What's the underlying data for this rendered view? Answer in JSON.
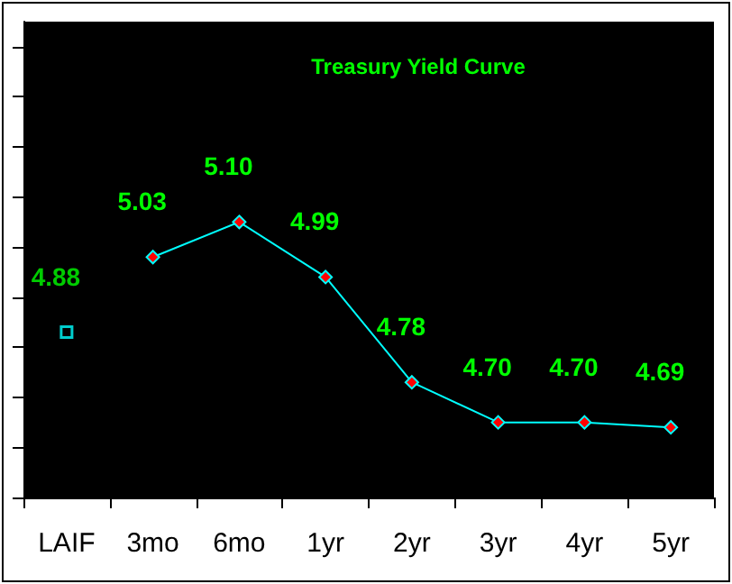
{
  "chart_data": {
    "type": "line",
    "title": "Treasury Yield Curve",
    "categories": [
      "LAIF",
      "3mo",
      "6mo",
      "1yr",
      "2yr",
      "3yr",
      "4yr",
      "5yr"
    ],
    "series": [
      {
        "type": "scatter",
        "color": "#00ffff",
        "marker": "square",
        "values": [
          4.88,
          null,
          null,
          null,
          null,
          null,
          null,
          null
        ],
        "value_labels": [
          "4.88",
          null,
          null,
          null,
          null,
          null,
          null,
          null
        ]
      },
      {
        "color": "#00ffff",
        "colors": [
          "#ff0000",
          "#ff0000",
          "#ff0000",
          "#ff0000",
          "#ff0000",
          "#ff0000",
          "#ff0000",
          "#ff0000"
        ],
        "marker": "diamond",
        "values": [
          null,
          5.03,
          5.1,
          4.99,
          4.78,
          4.7,
          4.7,
          4.69
        ],
        "value_labels": [
          null,
          "5.03",
          "5.10",
          "4.99",
          "4.78",
          "4.70",
          "4.70",
          "4.69"
        ]
      }
    ],
    "ylim": [
      4.55,
      5.5
    ],
    "yticks": [
      {
        "value": 4.55,
        "label": null
      },
      {
        "value": 4.65,
        "label": null
      },
      {
        "value": 4.75,
        "label": null
      },
      {
        "value": 4.85,
        "label": null
      },
      {
        "value": 4.95,
        "label": null
      },
      {
        "value": 5.05,
        "label": null
      },
      {
        "value": 5.15,
        "label": null
      },
      {
        "value": 5.25,
        "label": null
      },
      {
        "value": 5.35,
        "label": null
      },
      {
        "value": 5.45,
        "label": null
      }
    ],
    "tick_labels": "x",
    "grid": false
  }
}
